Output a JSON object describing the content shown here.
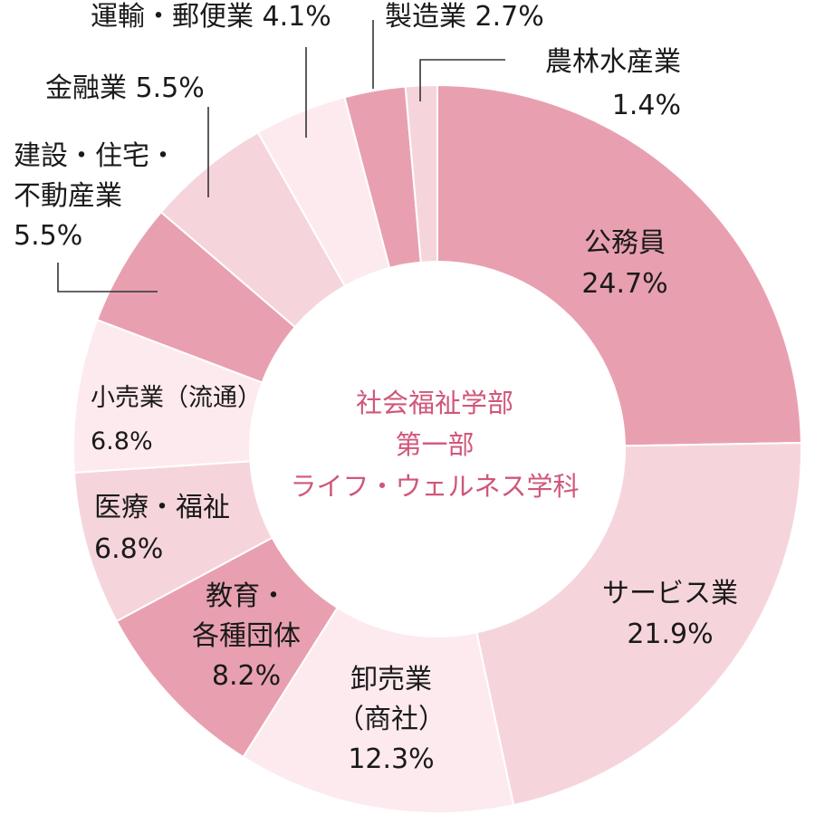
{
  "chart_data": {
    "type": "pie",
    "variant": "donut",
    "center_label": [
      "社会福祉学部",
      "第一部",
      "ライフ・ウェルネス学科"
    ],
    "unit": "%",
    "categories": [
      "公務員",
      "サービス業",
      "卸売業（商社）",
      "教育・各種団体",
      "医療・福祉",
      "小売業（流通）",
      "建設・住宅・不動産業",
      "金融業",
      "運輸・郵便業",
      "製造業",
      "農林水産業"
    ],
    "values": [
      24.7,
      21.9,
      12.3,
      8.2,
      6.8,
      6.8,
      5.5,
      5.5,
      4.1,
      2.7,
      1.4
    ],
    "slices": [
      {
        "label_lines": [
          "公務員",
          "24.7%"
        ],
        "color": "#e8a0b0"
      },
      {
        "label_lines": [
          "サービス業",
          "21.9%"
        ],
        "color": "#f5d5db"
      },
      {
        "label_lines": [
          "卸売業",
          "（商社）",
          "12.3%"
        ],
        "color": "#fdeaee"
      },
      {
        "label_lines": [
          "教育・",
          "各種団体",
          "8.2%"
        ],
        "color": "#e8a0b0"
      },
      {
        "label_lines": [
          "医療・福祉",
          "6.8%"
        ],
        "color": "#f5d5db"
      },
      {
        "label_lines": [
          "小売業（流通）",
          "6.8%"
        ],
        "color": "#fdeaee"
      },
      {
        "label_lines": [
          "建設・住宅・",
          "不動産業",
          "5.5%"
        ],
        "color": "#e8a0b0"
      },
      {
        "label_lines": [
          "金融業 5.5%"
        ],
        "color": "#f5d5db"
      },
      {
        "label_lines": [
          "運輸・郵便業 4.1%"
        ],
        "color": "#fdeaee"
      },
      {
        "label_lines": [
          "製造業 2.7%"
        ],
        "color": "#e8a0b0"
      },
      {
        "label_lines": [
          "農林水産業",
          "1.4%"
        ],
        "color": "#f5d5db"
      }
    ]
  }
}
